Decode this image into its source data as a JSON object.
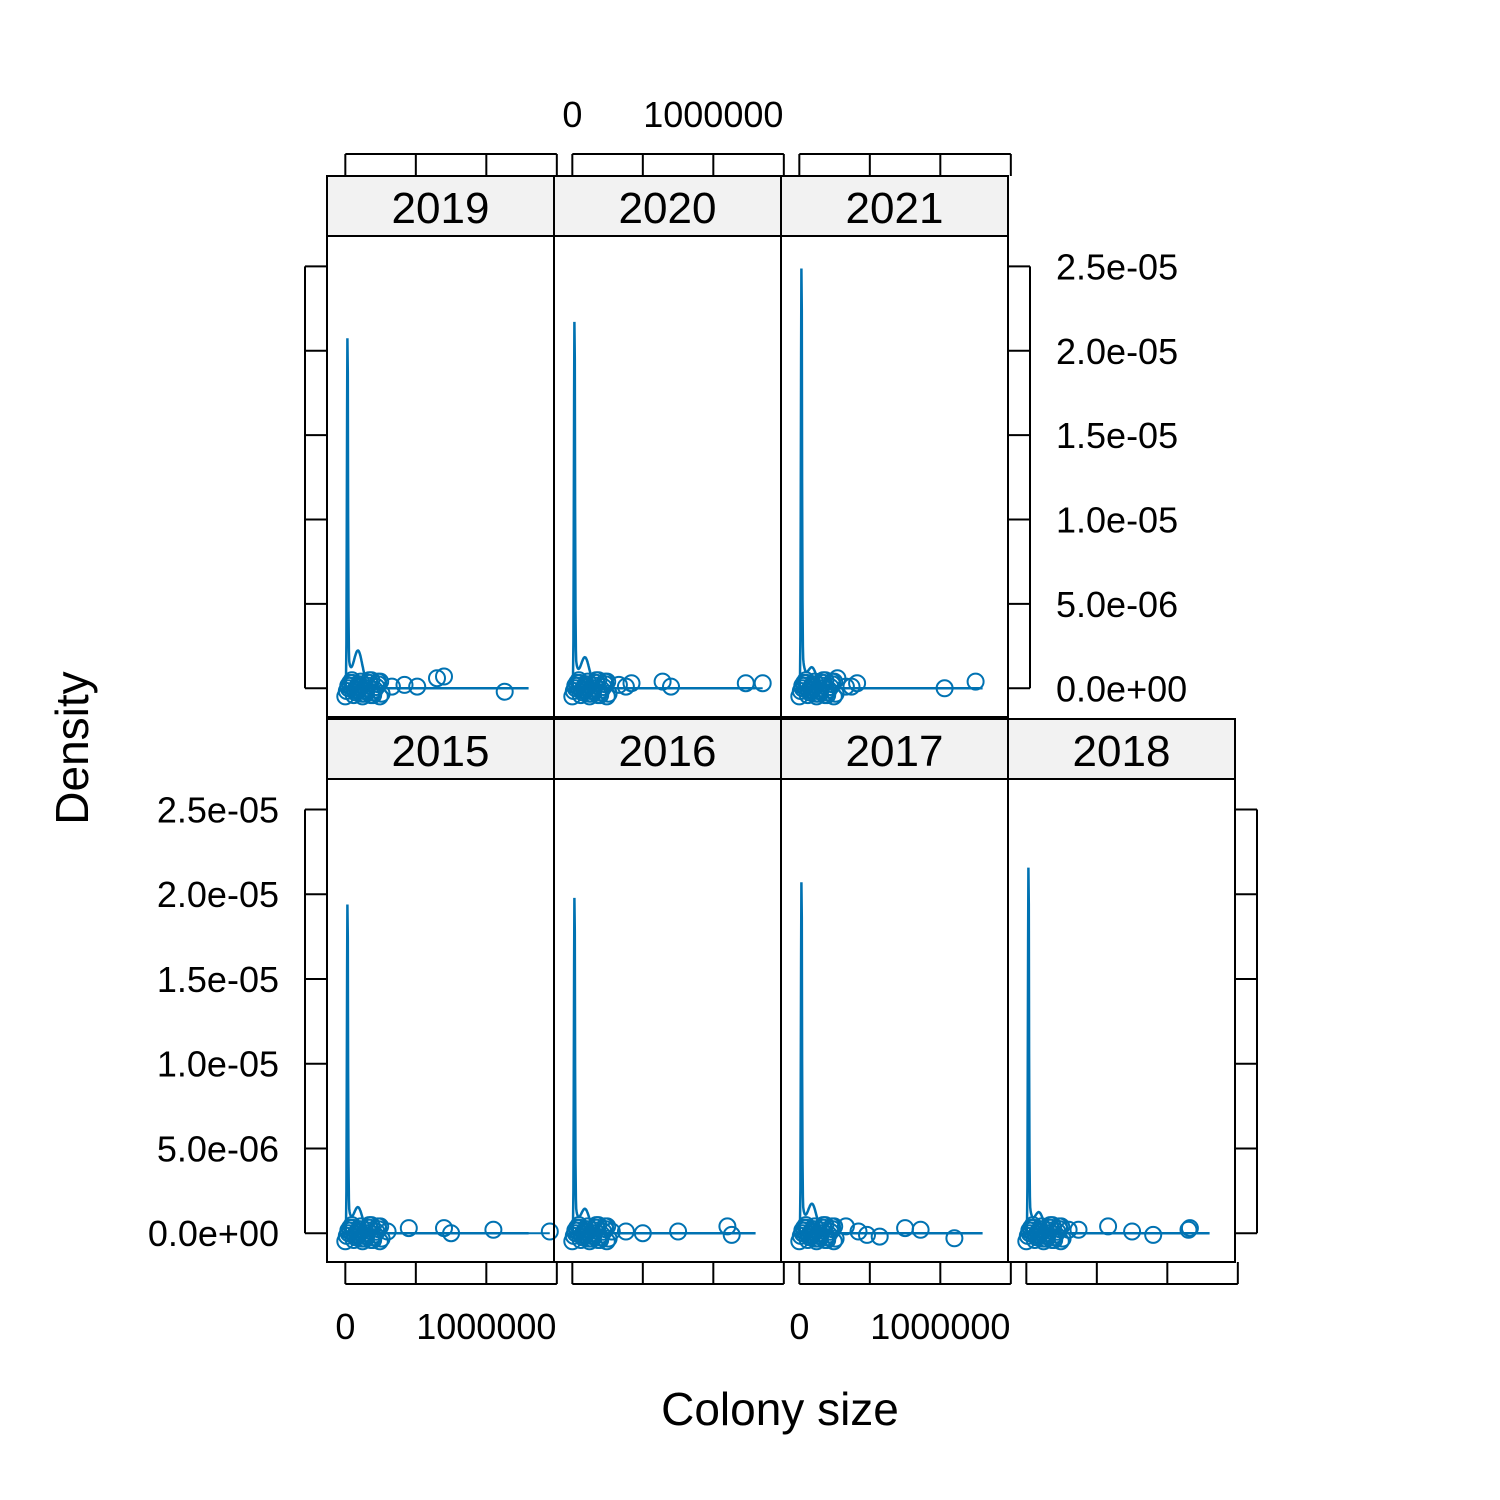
{
  "chart_data": {
    "type": "line",
    "xlabel": "Colony size",
    "ylabel": "Density",
    "xlim": [
      -130000,
      1480000
    ],
    "ylim": [
      -1.7e-06,
      2.68e-05
    ],
    "x_ticks": [
      0,
      500000,
      1000000,
      1500000
    ],
    "x_tick_labels": [
      "0",
      "",
      "1000000",
      ""
    ],
    "y_ticks": [
      0,
      5e-06,
      1e-05,
      1.5e-05,
      2e-05,
      2.5e-05
    ],
    "y_tick_labels": [
      "0.0e+00",
      "5.0e-06",
      "1.0e-05",
      "1.5e-05",
      "2.0e-05",
      "2.5e-05"
    ],
    "line_color": "#0072B2",
    "strip_color": "#F2F2F2",
    "panels": [
      {
        "year": "2019",
        "peak_x": 15000,
        "peak": 2.06e-05,
        "shoulder": 2.2e-06,
        "outliers": [
          [
            330000,
            1e-07
          ],
          [
            420000,
            2e-07
          ],
          [
            510000,
            1e-07
          ],
          [
            650000,
            6e-07
          ],
          [
            700000,
            7e-07
          ],
          [
            1130000,
            -2e-07
          ]
        ]
      },
      {
        "year": "2020",
        "peak_x": 15000,
        "peak": 2.16e-05,
        "shoulder": 1.8e-06,
        "outliers": [
          [
            330000,
            2e-07
          ],
          [
            380000,
            1e-07
          ],
          [
            420000,
            3e-07
          ],
          [
            640000,
            4e-07
          ],
          [
            700000,
            1e-07
          ],
          [
            1230000,
            3e-07
          ],
          [
            1350000,
            3e-07
          ]
        ]
      },
      {
        "year": "2021",
        "peak_x": 15000,
        "peak": 2.48e-05,
        "shoulder": 1.2e-06,
        "outliers": [
          [
            270000,
            6e-07
          ],
          [
            330000,
            1e-07
          ],
          [
            370000,
            1e-07
          ],
          [
            410000,
            3e-07
          ],
          [
            1030000,
            0.0
          ],
          [
            1250000,
            4e-07
          ]
        ]
      },
      {
        "year": "2015",
        "peak_x": 15000,
        "peak": 1.93e-05,
        "shoulder": 1.5e-06,
        "outliers": [
          [
            300000,
            1e-07
          ],
          [
            450000,
            3e-07
          ],
          [
            700000,
            3e-07
          ],
          [
            750000,
            0.0
          ],
          [
            1050000,
            2e-07
          ],
          [
            1450000,
            1e-07
          ]
        ]
      },
      {
        "year": "2016",
        "peak_x": 15000,
        "peak": 1.97e-05,
        "shoulder": 1.4e-06,
        "outliers": [
          [
            280000,
            1e-07
          ],
          [
            380000,
            1e-07
          ],
          [
            500000,
            0.0
          ],
          [
            750000,
            1e-07
          ],
          [
            1100000,
            4e-07
          ],
          [
            1130000,
            -1e-07
          ]
        ]
      },
      {
        "year": "2017",
        "peak_x": 15000,
        "peak": 2.06e-05,
        "shoulder": 1.7e-06,
        "outliers": [
          [
            330000,
            4e-07
          ],
          [
            420000,
            1e-07
          ],
          [
            480000,
            -1e-07
          ],
          [
            570000,
            -2e-07
          ],
          [
            750000,
            3e-07
          ],
          [
            860000,
            2e-07
          ],
          [
            1100000,
            -3e-07
          ]
        ]
      },
      {
        "year": "2018",
        "peak_x": 15000,
        "peak": 2.15e-05,
        "shoulder": 1.2e-06,
        "outliers": [
          [
            300000,
            2e-07
          ],
          [
            370000,
            2e-07
          ],
          [
            580000,
            4e-07
          ],
          [
            750000,
            1e-07
          ],
          [
            900000,
            -1e-07
          ],
          [
            1150000,
            2e-07
          ],
          [
            1160000,
            3e-07
          ]
        ]
      }
    ]
  }
}
